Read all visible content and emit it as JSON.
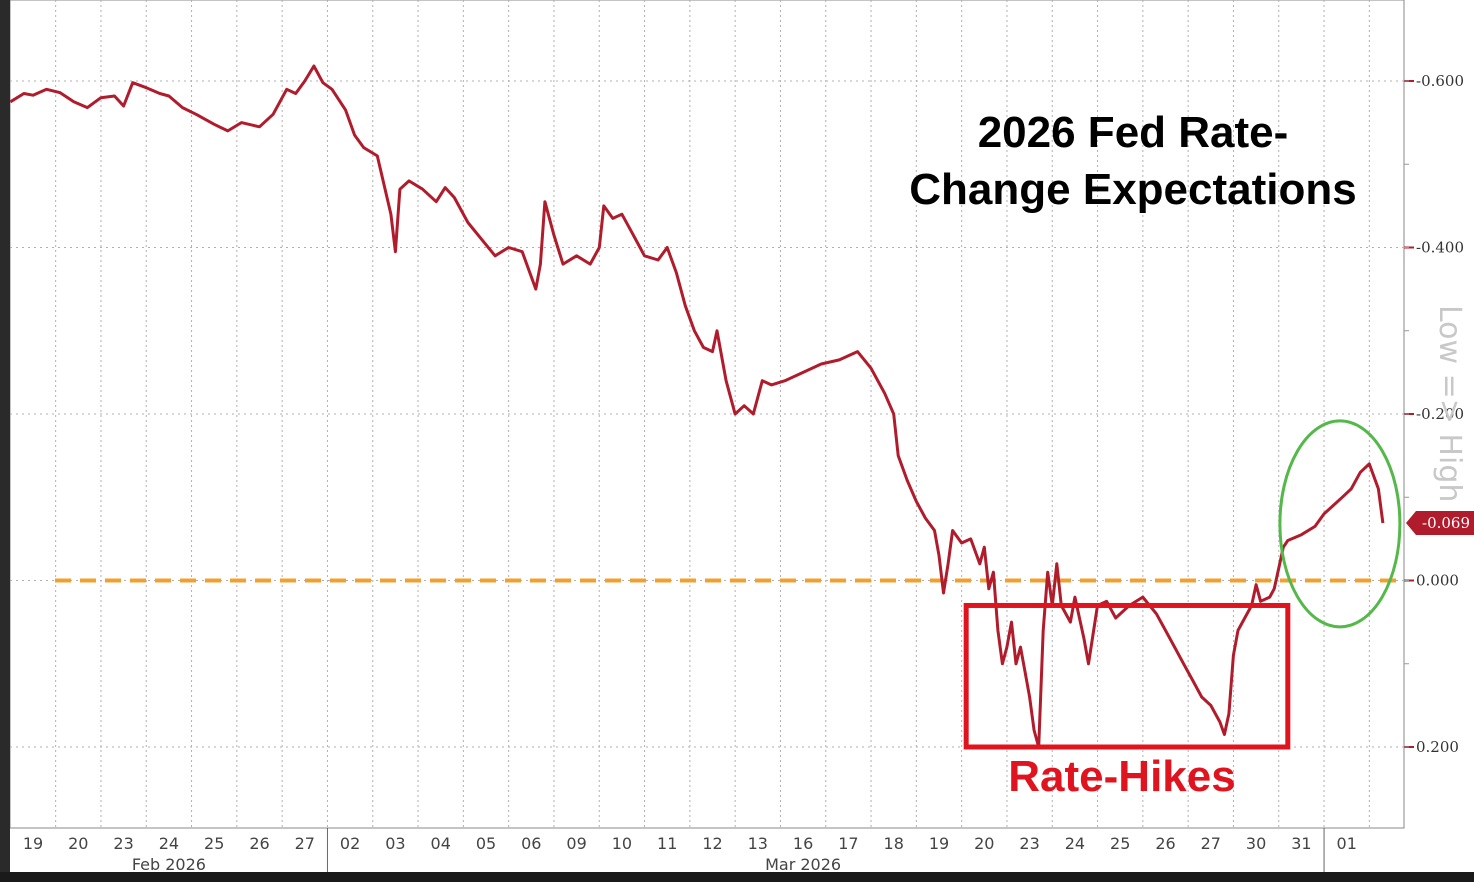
{
  "chart_data": {
    "type": "line",
    "title": "2026 Fed Rate-\nChange Expectations",
    "title_lines": [
      "2026 Fed Rate-",
      "Change Expectations"
    ],
    "side_note": "Low => High",
    "annotation": "Rate-Hikes",
    "y_axis": {
      "position": "right",
      "inverted": true,
      "range": [
        -0.7,
        0.3
      ],
      "ticks": [
        -0.6,
        -0.4,
        -0.2,
        0.0,
        0.2
      ],
      "tick_labels": [
        "-0.600",
        "-0.400",
        "-0.200",
        "0.000",
        "0.200"
      ]
    },
    "x_axis": {
      "dates": [
        "19",
        "20",
        "23",
        "24",
        "25",
        "26",
        "27",
        "02",
        "03",
        "04",
        "05",
        "06",
        "09",
        "10",
        "11",
        "12",
        "13",
        "16",
        "17",
        "18",
        "19",
        "20",
        "23",
        "24",
        "25",
        "26",
        "27",
        "30",
        "31",
        "01"
      ],
      "months": [
        {
          "label": "Feb 2026",
          "start": 0,
          "end": 6
        },
        {
          "label": "Mar 2026",
          "start": 7,
          "end": 28
        }
      ]
    },
    "reference_line": {
      "y": 0.0,
      "color": "#f0a030",
      "style": "dashed"
    },
    "last_value": {
      "value": -0.069,
      "label": "-0.069"
    },
    "series": [
      {
        "color": "#b01c2c",
        "points": [
          [
            -0.5,
            -0.575
          ],
          [
            -0.2,
            -0.585
          ],
          [
            0.0,
            -0.583
          ],
          [
            0.3,
            -0.59
          ],
          [
            0.6,
            -0.586
          ],
          [
            0.9,
            -0.575
          ],
          [
            1.2,
            -0.568
          ],
          [
            1.5,
            -0.58
          ],
          [
            1.8,
            -0.582
          ],
          [
            2.0,
            -0.57
          ],
          [
            2.2,
            -0.598
          ],
          [
            2.5,
            -0.592
          ],
          [
            2.8,
            -0.585
          ],
          [
            3.0,
            -0.582
          ],
          [
            3.3,
            -0.568
          ],
          [
            3.6,
            -0.56
          ],
          [
            4.0,
            -0.548
          ],
          [
            4.3,
            -0.54
          ],
          [
            4.6,
            -0.55
          ],
          [
            5.0,
            -0.545
          ],
          [
            5.3,
            -0.56
          ],
          [
            5.6,
            -0.59
          ],
          [
            5.8,
            -0.585
          ],
          [
            6.0,
            -0.6
          ],
          [
            6.2,
            -0.618
          ],
          [
            6.4,
            -0.598
          ],
          [
            6.6,
            -0.59
          ],
          [
            6.9,
            -0.565
          ],
          [
            7.1,
            -0.535
          ],
          [
            7.3,
            -0.52
          ],
          [
            7.6,
            -0.51
          ],
          [
            7.9,
            -0.44
          ],
          [
            8.0,
            -0.395
          ],
          [
            8.1,
            -0.47
          ],
          [
            8.3,
            -0.48
          ],
          [
            8.6,
            -0.47
          ],
          [
            8.9,
            -0.455
          ],
          [
            9.1,
            -0.472
          ],
          [
            9.3,
            -0.46
          ],
          [
            9.6,
            -0.43
          ],
          [
            9.9,
            -0.41
          ],
          [
            10.2,
            -0.39
          ],
          [
            10.5,
            -0.4
          ],
          [
            10.8,
            -0.395
          ],
          [
            11.1,
            -0.35
          ],
          [
            11.2,
            -0.38
          ],
          [
            11.3,
            -0.455
          ],
          [
            11.5,
            -0.415
          ],
          [
            11.7,
            -0.38
          ],
          [
            12.0,
            -0.39
          ],
          [
            12.3,
            -0.38
          ],
          [
            12.5,
            -0.4
          ],
          [
            12.6,
            -0.45
          ],
          [
            12.8,
            -0.435
          ],
          [
            13.0,
            -0.44
          ],
          [
            13.2,
            -0.42
          ],
          [
            13.5,
            -0.39
          ],
          [
            13.8,
            -0.385
          ],
          [
            14.0,
            -0.4
          ],
          [
            14.2,
            -0.37
          ],
          [
            14.4,
            -0.33
          ],
          [
            14.6,
            -0.3
          ],
          [
            14.8,
            -0.28
          ],
          [
            15.0,
            -0.275
          ],
          [
            15.1,
            -0.3
          ],
          [
            15.3,
            -0.24
          ],
          [
            15.5,
            -0.2
          ],
          [
            15.7,
            -0.21
          ],
          [
            15.9,
            -0.2
          ],
          [
            16.1,
            -0.24
          ],
          [
            16.3,
            -0.235
          ],
          [
            16.6,
            -0.24
          ],
          [
            17.0,
            -0.25
          ],
          [
            17.4,
            -0.26
          ],
          [
            17.8,
            -0.265
          ],
          [
            18.2,
            -0.275
          ],
          [
            18.5,
            -0.255
          ],
          [
            18.8,
            -0.225
          ],
          [
            19.0,
            -0.2
          ],
          [
            19.1,
            -0.15
          ],
          [
            19.3,
            -0.12
          ],
          [
            19.5,
            -0.095
          ],
          [
            19.7,
            -0.075
          ],
          [
            19.9,
            -0.06
          ],
          [
            20.0,
            -0.03
          ],
          [
            20.1,
            0.015
          ],
          [
            20.2,
            -0.02
          ],
          [
            20.3,
            -0.06
          ],
          [
            20.5,
            -0.045
          ],
          [
            20.7,
            -0.05
          ],
          [
            20.9,
            -0.02
          ],
          [
            21.0,
            -0.04
          ],
          [
            21.1,
            0.01
          ],
          [
            21.2,
            -0.01
          ],
          [
            21.3,
            0.06
          ],
          [
            21.4,
            0.1
          ],
          [
            21.5,
            0.08
          ],
          [
            21.6,
            0.05
          ],
          [
            21.7,
            0.1
          ],
          [
            21.8,
            0.08
          ],
          [
            21.9,
            0.11
          ],
          [
            22.0,
            0.14
          ],
          [
            22.1,
            0.18
          ],
          [
            22.2,
            0.2
          ],
          [
            22.3,
            0.06
          ],
          [
            22.4,
            -0.01
          ],
          [
            22.5,
            0.03
          ],
          [
            22.6,
            -0.02
          ],
          [
            22.7,
            0.03
          ],
          [
            22.9,
            0.05
          ],
          [
            23.0,
            0.02
          ],
          [
            23.2,
            0.07
          ],
          [
            23.3,
            0.1
          ],
          [
            23.5,
            0.03
          ],
          [
            23.7,
            0.025
          ],
          [
            23.9,
            0.045
          ],
          [
            24.2,
            0.03
          ],
          [
            24.5,
            0.02
          ],
          [
            24.8,
            0.04
          ],
          [
            25.0,
            0.06
          ],
          [
            25.2,
            0.08
          ],
          [
            25.4,
            0.1
          ],
          [
            25.6,
            0.12
          ],
          [
            25.8,
            0.14
          ],
          [
            26.0,
            0.15
          ],
          [
            26.2,
            0.17
          ],
          [
            26.3,
            0.185
          ],
          [
            26.4,
            0.16
          ],
          [
            26.5,
            0.09
          ],
          [
            26.6,
            0.06
          ],
          [
            26.7,
            0.05
          ],
          [
            26.9,
            0.03
          ],
          [
            27.0,
            0.005
          ],
          [
            27.1,
            0.025
          ],
          [
            27.3,
            0.02
          ],
          [
            27.4,
            0.01
          ],
          [
            27.5,
            -0.015
          ],
          [
            27.6,
            -0.04
          ],
          [
            27.7,
            -0.048
          ],
          [
            28.0,
            -0.055
          ],
          [
            28.3,
            -0.065
          ],
          [
            28.5,
            -0.08
          ],
          [
            28.7,
            -0.09
          ],
          [
            28.9,
            -0.1
          ],
          [
            29.1,
            -0.11
          ],
          [
            29.3,
            -0.13
          ],
          [
            29.5,
            -0.14
          ],
          [
            29.7,
            -0.11
          ],
          [
            29.8,
            -0.069
          ]
        ]
      }
    ],
    "grid": true
  }
}
